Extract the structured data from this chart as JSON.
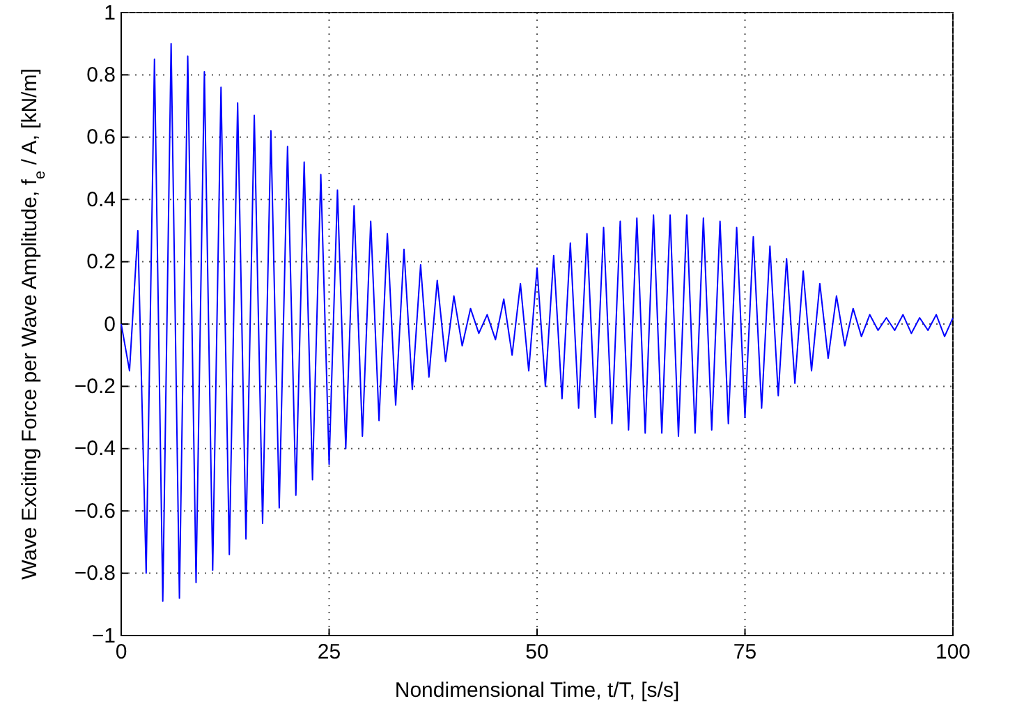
{
  "chart_data": {
    "type": "line",
    "xlabel": "Nondimensional Time, t/T, [s/s]",
    "ylabel": "Wave Exciting Force per Wave Amplitude, f$_{e}$ / A, [kN/m]",
    "x": [
      0,
      1,
      2,
      3,
      4,
      5,
      6,
      7,
      8,
      9,
      10,
      11,
      12,
      13,
      14,
      15,
      16,
      17,
      18,
      19,
      20,
      21,
      22,
      23,
      24,
      25,
      26,
      27,
      28,
      29,
      30,
      31,
      32,
      33,
      34,
      35,
      36,
      37,
      38,
      39,
      40,
      41,
      42,
      43,
      44,
      45,
      46,
      47,
      48,
      49,
      50,
      51,
      52,
      53,
      54,
      55,
      56,
      57,
      58,
      59,
      60,
      61,
      62,
      63,
      64,
      65,
      66,
      67,
      68,
      69,
      70,
      71,
      72,
      73,
      74,
      75,
      76,
      77,
      78,
      79,
      80,
      81,
      82,
      83,
      84,
      85,
      86,
      87,
      88,
      89,
      90,
      91,
      92,
      93,
      94,
      95,
      96,
      97,
      98,
      99,
      100
    ],
    "series": [
      {
        "color": "#0000ff",
        "values": [
          0,
          -0.15,
          0.3,
          -0.8,
          0.85,
          -0.89,
          0.9,
          -0.88,
          0.86,
          -0.83,
          0.81,
          -0.79,
          0.76,
          -0.74,
          0.71,
          -0.69,
          0.67,
          -0.64,
          0.62,
          -0.59,
          0.57,
          -0.55,
          0.52,
          -0.5,
          0.48,
          -0.45,
          0.43,
          -0.4,
          0.38,
          -0.36,
          0.33,
          -0.31,
          0.29,
          -0.26,
          0.24,
          -0.21,
          0.19,
          -0.17,
          0.14,
          -0.12,
          0.09,
          -0.07,
          0.05,
          -0.03,
          0.03,
          -0.05,
          0.08,
          -0.1,
          0.13,
          -0.15,
          0.18,
          -0.2,
          0.22,
          -0.24,
          0.26,
          -0.27,
          0.29,
          -0.3,
          0.31,
          -0.32,
          0.33,
          -0.34,
          0.34,
          -0.35,
          0.35,
          -0.35,
          0.35,
          -0.36,
          0.35,
          -0.35,
          0.34,
          -0.34,
          0.33,
          -0.32,
          0.31,
          -0.3,
          0.28,
          -0.27,
          0.25,
          -0.23,
          0.21,
          -0.19,
          0.17,
          -0.15,
          0.13,
          -0.11,
          0.09,
          -0.07,
          0.05,
          -0.04,
          0.03,
          -0.02,
          0.02,
          -0.02,
          0.03,
          -0.03,
          0.02,
          -0.02,
          0.03,
          -0.04,
          0.02
        ]
      }
    ],
    "xlim": [
      0,
      100
    ],
    "xticks": [
      0,
      25,
      50,
      75,
      100
    ],
    "ylim": [
      -1,
      1
    ],
    "yticks": [
      -1,
      -0.8,
      -0.6,
      -0.4,
      -0.2,
      0,
      0.2,
      0.4,
      0.6,
      0.8,
      1
    ],
    "grid": true,
    "line_style": "solid",
    "marker": "none"
  }
}
